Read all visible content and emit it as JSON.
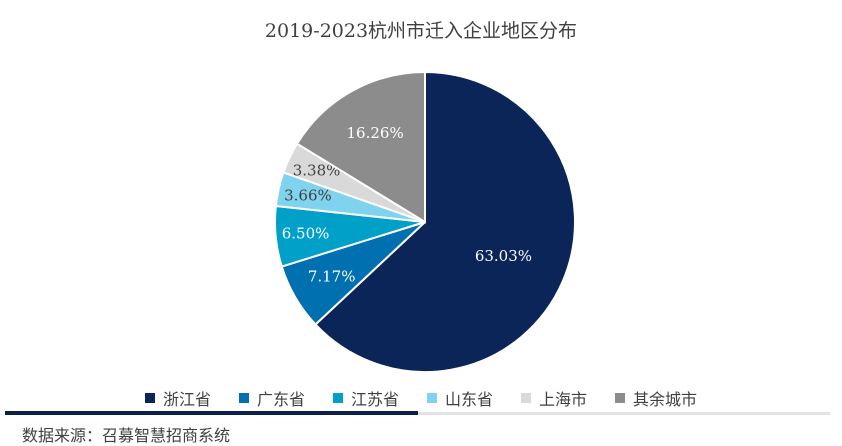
{
  "chart_data": {
    "type": "pie",
    "title": "2019-2023杭州市迁入企业地区分布",
    "categories": [
      "浙江省",
      "广东省",
      "江苏省",
      "山东省",
      "上海市",
      "其余城市"
    ],
    "values": [
      63.03,
      7.17,
      6.5,
      3.66,
      3.38,
      16.26
    ],
    "labels": [
      "63.03%",
      "7.17%",
      "6.50%",
      "3.66%",
      "3.38%",
      "16.26%"
    ],
    "colors": [
      "#0b2559",
      "#0070b0",
      "#00a0c8",
      "#7fd3ee",
      "#d9d9d9",
      "#8c8c8c"
    ],
    "label_colors": [
      "#ffffff",
      "#ffffff",
      "#ffffff",
      "#404040",
      "#404040",
      "#ffffff"
    ],
    "legend_position": "bottom",
    "start": "top-clockwise"
  },
  "source": "数据来源：召募智慧招商系统"
}
